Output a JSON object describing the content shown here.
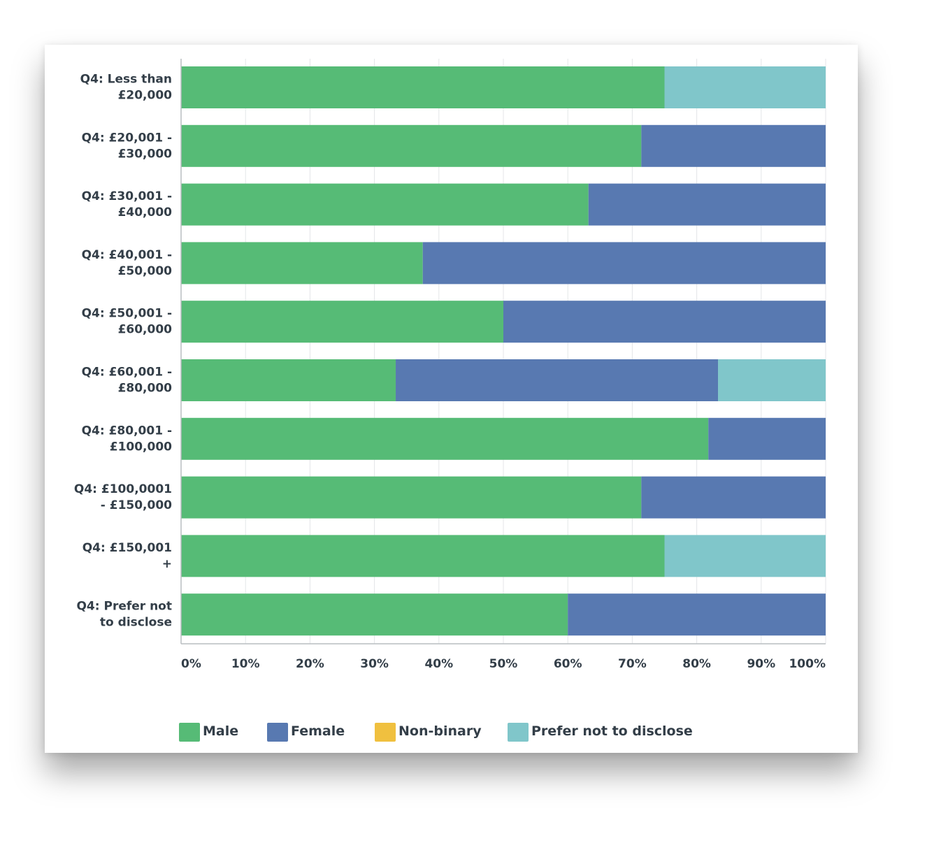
{
  "chart_data": {
    "type": "bar",
    "orientation": "horizontal",
    "stacked": true,
    "normalized": true,
    "categories": [
      [
        "Q4: Less than",
        "£20,000"
      ],
      [
        "Q4: £20,001 -",
        "£30,000"
      ],
      [
        "Q4: £30,001 -",
        "£40,000"
      ],
      [
        "Q4: £40,001 -",
        "£50,000"
      ],
      [
        "Q4: £50,001 -",
        "£60,000"
      ],
      [
        "Q4: £60,001 -",
        "£80,000"
      ],
      [
        "Q4: £80,001 -",
        "£100,000"
      ],
      [
        "Q4: £100,0001",
        "- £150,000"
      ],
      [
        "Q4: £150,001",
        "+"
      ],
      [
        "Q4: Prefer not",
        "to disclose"
      ]
    ],
    "series": [
      {
        "name": "Male",
        "color": "#56bb76",
        "values": [
          75,
          71.4,
          63.2,
          37.5,
          50,
          33.3,
          81.8,
          71.4,
          75,
          60
        ]
      },
      {
        "name": "Female",
        "color": "#5879b1",
        "values": [
          0,
          28.6,
          36.8,
          62.5,
          50,
          50,
          18.2,
          28.6,
          0,
          40
        ]
      },
      {
        "name": "Non-binary",
        "color": "#f0c03f",
        "values": [
          0,
          0,
          0,
          0,
          0,
          0,
          0,
          0,
          0,
          0
        ]
      },
      {
        "name": "Prefer not to disclose",
        "color": "#80c6ca",
        "values": [
          25,
          0,
          0,
          0,
          0,
          16.7,
          0,
          0,
          25,
          0
        ]
      }
    ],
    "xticks": [
      "0%",
      "10%",
      "20%",
      "30%",
      "40%",
      "50%",
      "60%",
      "70%",
      "80%",
      "90%",
      "100%"
    ],
    "xlim": [
      0,
      100
    ],
    "grid": true,
    "legend_position": "bottom"
  }
}
